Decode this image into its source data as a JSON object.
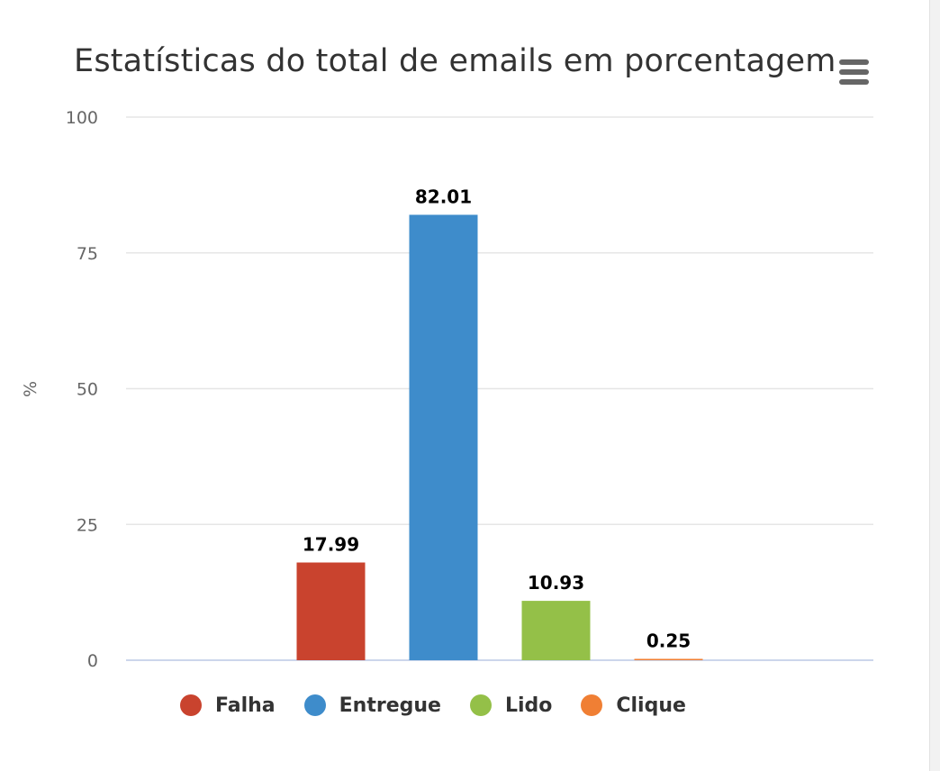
{
  "chart_data": {
    "type": "bar",
    "title": "Estatísticas do total de emails em porcentagem",
    "xlabel": "",
    "ylabel": "%",
    "ylim": [
      0,
      100
    ],
    "yticks": [
      0,
      25,
      50,
      75,
      100
    ],
    "grid": true,
    "legend_position": "bottom",
    "series": [
      {
        "name": "Falha",
        "value": 17.99,
        "label": "17.99",
        "color": "#c9432e"
      },
      {
        "name": "Entregue",
        "value": 82.01,
        "label": "82.01",
        "color": "#3e8ccb"
      },
      {
        "name": "Lido",
        "value": 10.93,
        "label": "10.93",
        "color": "#94c048"
      },
      {
        "name": "Clique",
        "value": 0.25,
        "label": "0.25",
        "color": "#f07f34"
      }
    ]
  },
  "menu": {
    "icon": "hamburger-menu-icon"
  }
}
